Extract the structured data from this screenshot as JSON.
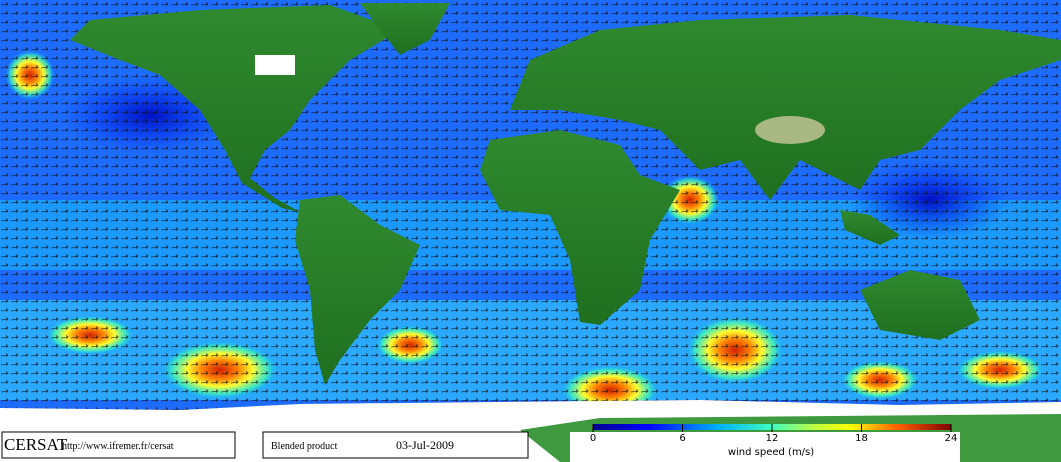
{
  "logo": "CERSAT",
  "url": "http://www.ifremer.fr/cersat",
  "product": "Blended product",
  "date": "03-Jul-2009",
  "colorbar": {
    "label": "wind speed (m/s)",
    "lim": [
      0,
      24
    ],
    "ticks": [
      0,
      6,
      12,
      18,
      24
    ]
  }
}
